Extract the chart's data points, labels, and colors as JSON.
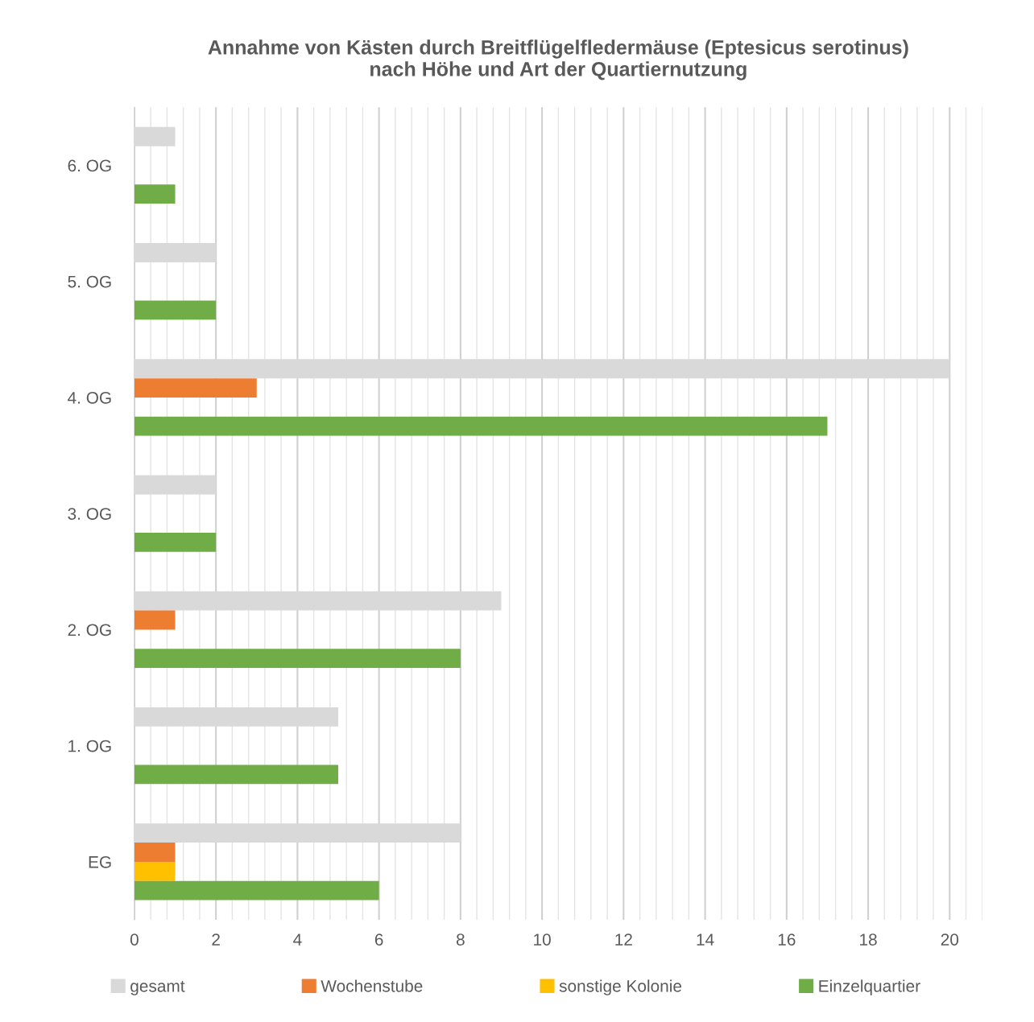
{
  "chart_data": {
    "type": "bar",
    "orientation": "horizontal",
    "title": "Annahme von Kästen durch Breitflügelfledermäuse (Eptesicus serotinus)\nnach Höhe und Art der Quartiernutzung",
    "categories": [
      "6. OG",
      "5. OG",
      "4. OG",
      "3. OG",
      "2. OG",
      "1. OG",
      "EG"
    ],
    "series": [
      {
        "name": "gesamt",
        "color": "#d9d9d9",
        "values": [
          1,
          2,
          20,
          2,
          9,
          5,
          8
        ]
      },
      {
        "name": "Wochenstube",
        "color": "#ed7d31",
        "values": [
          0,
          0,
          3,
          0,
          1,
          0,
          1
        ]
      },
      {
        "name": "sonstige Kolonie",
        "color": "#ffc000",
        "values": [
          0,
          0,
          0,
          0,
          0,
          0,
          1
        ]
      },
      {
        "name": "Einzelquartier",
        "color": "#70ad47",
        "values": [
          1,
          2,
          17,
          2,
          8,
          5,
          6
        ]
      }
    ],
    "xlim": [
      0,
      20.8
    ],
    "xticks": [
      0,
      2,
      4,
      6,
      8,
      10,
      12,
      14,
      16,
      18,
      20
    ],
    "grid": "x",
    "legend": "bottom"
  }
}
